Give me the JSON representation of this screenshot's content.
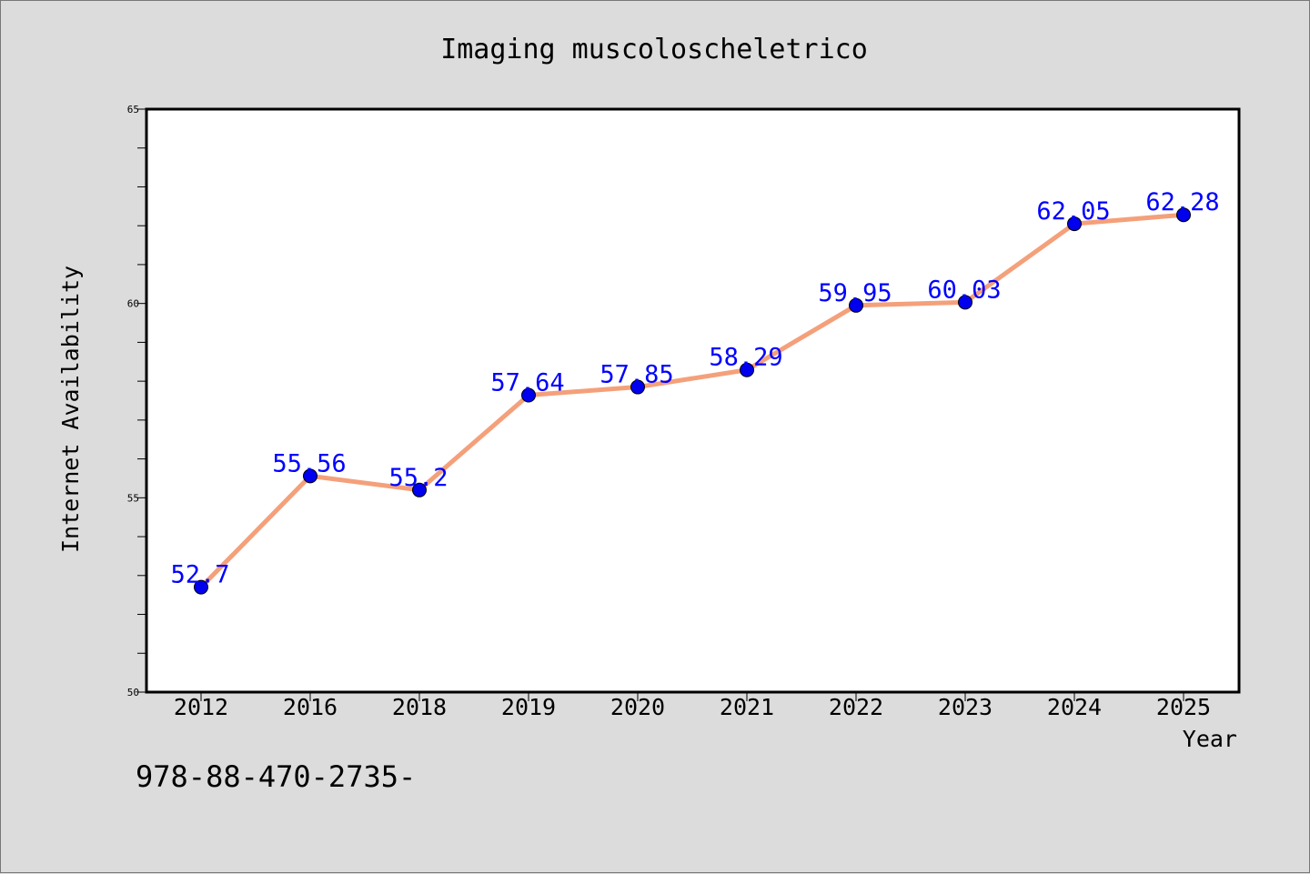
{
  "chart_data": {
    "type": "line",
    "title": "Imaging muscoloscheletrico",
    "xlabel": "Year",
    "ylabel": "Internet Availability",
    "categories": [
      "2012",
      "2016",
      "2018",
      "2019",
      "2020",
      "2021",
      "2022",
      "2023",
      "2024",
      "2025"
    ],
    "series": [
      {
        "values": [
          52.7,
          55.56,
          55.2,
          57.64,
          57.85,
          58.29,
          59.95,
          60.03,
          62.05,
          62.28
        ],
        "data_labels": [
          "52.7",
          "55.56",
          "55.2",
          "57.64",
          "57.85",
          "58.29",
          "59.95",
          "60.03",
          "62.05",
          "62.28"
        ],
        "line_color": "#f4a07a",
        "marker_color": "#0000ee",
        "label_color": "#0000ff"
      }
    ],
    "ylim": [
      50,
      65
    ],
    "yticks": [
      "50",
      "55",
      "60",
      "65"
    ],
    "grid": false,
    "legend": "none"
  },
  "footer": {
    "text": "978-88-470-2735-"
  },
  "colors": {
    "background": "#dcdcdc",
    "plot_background": "#ffffff"
  }
}
